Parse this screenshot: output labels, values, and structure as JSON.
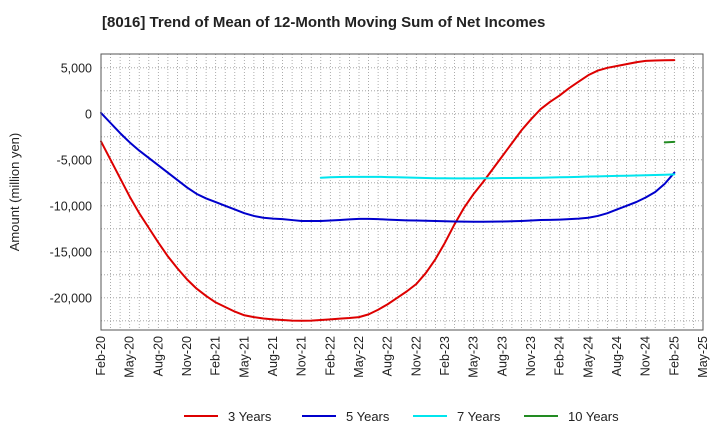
{
  "chart_data": {
    "type": "line",
    "title": "[8016]  Trend of Mean of 12-Month Moving Sum of Net Incomes",
    "xlabel": "",
    "ylabel": "Amount (million yen)",
    "ylim": [
      -23500,
      6500
    ],
    "yticks": [
      5000,
      0,
      -5000,
      -10000,
      -15000,
      -20000
    ],
    "ytick_labels": [
      "5,000",
      "0",
      "-5,000",
      "-10,000",
      "-15,000",
      "-20,000"
    ],
    "xtick_labels": [
      "Feb-20",
      "May-20",
      "Aug-20",
      "Nov-20",
      "Feb-21",
      "May-21",
      "Aug-21",
      "Nov-21",
      "Feb-22",
      "May-22",
      "Aug-22",
      "Nov-22",
      "Feb-23",
      "May-23",
      "Aug-23",
      "Nov-23",
      "Feb-24",
      "May-24",
      "Aug-24",
      "Nov-24",
      "Feb-25",
      "May-25"
    ],
    "grid": true,
    "legend_position": "bottom",
    "series": [
      {
        "name": "3 Years",
        "color": "#dd0000",
        "points": [
          [
            "2020-02",
            -3000
          ],
          [
            "2020-03",
            -5000
          ],
          [
            "2020-04",
            -7000
          ],
          [
            "2020-05",
            -9000
          ],
          [
            "2020-06",
            -10800
          ],
          [
            "2020-07",
            -12400
          ],
          [
            "2020-08",
            -14000
          ],
          [
            "2020-09",
            -15500
          ],
          [
            "2020-10",
            -16800
          ],
          [
            "2020-11",
            -18000
          ],
          [
            "2020-12",
            -19000
          ],
          [
            "2021-01",
            -19800
          ],
          [
            "2021-02",
            -20500
          ],
          [
            "2021-03",
            -21000
          ],
          [
            "2021-04",
            -21500
          ],
          [
            "2021-05",
            -21900
          ],
          [
            "2021-06",
            -22100
          ],
          [
            "2021-07",
            -22250
          ],
          [
            "2021-08",
            -22350
          ],
          [
            "2021-09",
            -22420
          ],
          [
            "2021-10",
            -22480
          ],
          [
            "2021-11",
            -22500
          ],
          [
            "2021-12",
            -22480
          ],
          [
            "2022-01",
            -22420
          ],
          [
            "2022-02",
            -22350
          ],
          [
            "2022-03",
            -22270
          ],
          [
            "2022-04",
            -22200
          ],
          [
            "2022-05",
            -22100
          ],
          [
            "2022-06",
            -21800
          ],
          [
            "2022-07",
            -21300
          ],
          [
            "2022-08",
            -20700
          ],
          [
            "2022-09",
            -20000
          ],
          [
            "2022-10",
            -19300
          ],
          [
            "2022-11",
            -18500
          ],
          [
            "2022-12",
            -17300
          ],
          [
            "2023-01",
            -15800
          ],
          [
            "2023-02",
            -14000
          ],
          [
            "2023-03",
            -12000
          ],
          [
            "2023-04",
            -10200
          ],
          [
            "2023-05",
            -8700
          ],
          [
            "2023-06",
            -7400
          ],
          [
            "2023-07",
            -6000
          ],
          [
            "2023-08",
            -4600
          ],
          [
            "2023-09",
            -3200
          ],
          [
            "2023-10",
            -1800
          ],
          [
            "2023-11",
            -600
          ],
          [
            "2023-12",
            500
          ],
          [
            "2024-01",
            1300
          ],
          [
            "2024-02",
            2000
          ],
          [
            "2024-03",
            2800
          ],
          [
            "2024-04",
            3500
          ],
          [
            "2024-05",
            4200
          ],
          [
            "2024-06",
            4700
          ],
          [
            "2024-07",
            5000
          ],
          [
            "2024-08",
            5200
          ],
          [
            "2024-09",
            5400
          ],
          [
            "2024-10",
            5600
          ],
          [
            "2024-11",
            5750
          ],
          [
            "2024-12",
            5800
          ],
          [
            "2025-01",
            5820
          ],
          [
            "2025-02",
            5830
          ]
        ]
      },
      {
        "name": "5 Years",
        "color": "#0000cc",
        "points": [
          [
            "2020-02",
            100
          ],
          [
            "2020-03",
            -1000
          ],
          [
            "2020-04",
            -2100
          ],
          [
            "2020-05",
            -3100
          ],
          [
            "2020-06",
            -4000
          ],
          [
            "2020-07",
            -4800
          ],
          [
            "2020-08",
            -5600
          ],
          [
            "2020-09",
            -6400
          ],
          [
            "2020-10",
            -7200
          ],
          [
            "2020-11",
            -8000
          ],
          [
            "2020-12",
            -8700
          ],
          [
            "2021-01",
            -9200
          ],
          [
            "2021-02",
            -9600
          ],
          [
            "2021-03",
            -10000
          ],
          [
            "2021-04",
            -10400
          ],
          [
            "2021-05",
            -10800
          ],
          [
            "2021-06",
            -11100
          ],
          [
            "2021-07",
            -11300
          ],
          [
            "2021-08",
            -11400
          ],
          [
            "2021-09",
            -11450
          ],
          [
            "2021-10",
            -11550
          ],
          [
            "2021-11",
            -11650
          ],
          [
            "2021-12",
            -11650
          ],
          [
            "2022-01",
            -11650
          ],
          [
            "2022-02",
            -11600
          ],
          [
            "2022-03",
            -11550
          ],
          [
            "2022-04",
            -11480
          ],
          [
            "2022-05",
            -11420
          ],
          [
            "2022-06",
            -11420
          ],
          [
            "2022-07",
            -11450
          ],
          [
            "2022-08",
            -11500
          ],
          [
            "2022-09",
            -11550
          ],
          [
            "2022-10",
            -11580
          ],
          [
            "2022-11",
            -11600
          ],
          [
            "2022-12",
            -11630
          ],
          [
            "2023-01",
            -11650
          ],
          [
            "2023-02",
            -11680
          ],
          [
            "2023-03",
            -11700
          ],
          [
            "2023-04",
            -11720
          ],
          [
            "2023-05",
            -11730
          ],
          [
            "2023-06",
            -11730
          ],
          [
            "2023-07",
            -11720
          ],
          [
            "2023-08",
            -11700
          ],
          [
            "2023-09",
            -11680
          ],
          [
            "2023-10",
            -11650
          ],
          [
            "2023-11",
            -11600
          ],
          [
            "2023-12",
            -11550
          ],
          [
            "2024-01",
            -11530
          ],
          [
            "2024-02",
            -11500
          ],
          [
            "2024-03",
            -11450
          ],
          [
            "2024-04",
            -11400
          ],
          [
            "2024-05",
            -11300
          ],
          [
            "2024-06",
            -11100
          ],
          [
            "2024-07",
            -10800
          ],
          [
            "2024-08",
            -10400
          ],
          [
            "2024-09",
            -10000
          ],
          [
            "2024-10",
            -9600
          ],
          [
            "2024-11",
            -9100
          ],
          [
            "2024-12",
            -8500
          ],
          [
            "2025-01",
            -7600
          ],
          [
            "2025-02",
            -6400
          ]
        ]
      },
      {
        "name": "7 Years",
        "color": "#00e5ee",
        "points": [
          [
            "2022-01",
            -6950
          ],
          [
            "2022-02",
            -6900
          ],
          [
            "2022-03",
            -6870
          ],
          [
            "2022-04",
            -6850
          ],
          [
            "2022-05",
            -6850
          ],
          [
            "2022-06",
            -6850
          ],
          [
            "2022-07",
            -6850
          ],
          [
            "2022-08",
            -6880
          ],
          [
            "2022-09",
            -6900
          ],
          [
            "2022-10",
            -6930
          ],
          [
            "2022-11",
            -6950
          ],
          [
            "2022-12",
            -6980
          ],
          [
            "2023-01",
            -7000
          ],
          [
            "2023-02",
            -7000
          ],
          [
            "2023-03",
            -7020
          ],
          [
            "2023-04",
            -7020
          ],
          [
            "2023-05",
            -7020
          ],
          [
            "2023-06",
            -7000
          ],
          [
            "2023-07",
            -7000
          ],
          [
            "2023-08",
            -6980
          ],
          [
            "2023-09",
            -6980
          ],
          [
            "2023-10",
            -6970
          ],
          [
            "2023-11",
            -6960
          ],
          [
            "2023-12",
            -6950
          ],
          [
            "2024-01",
            -6930
          ],
          [
            "2024-02",
            -6900
          ],
          [
            "2024-03",
            -6880
          ],
          [
            "2024-04",
            -6850
          ],
          [
            "2024-05",
            -6820
          ],
          [
            "2024-06",
            -6800
          ],
          [
            "2024-07",
            -6780
          ],
          [
            "2024-08",
            -6750
          ],
          [
            "2024-09",
            -6730
          ],
          [
            "2024-10",
            -6700
          ],
          [
            "2024-11",
            -6680
          ],
          [
            "2024-12",
            -6650
          ],
          [
            "2025-01",
            -6620
          ],
          [
            "2025-02",
            -6580
          ]
        ]
      },
      {
        "name": "10 Years",
        "color": "#228b22",
        "points": [
          [
            "2025-01",
            -3100
          ],
          [
            "2025-02",
            -3050
          ]
        ]
      }
    ]
  }
}
